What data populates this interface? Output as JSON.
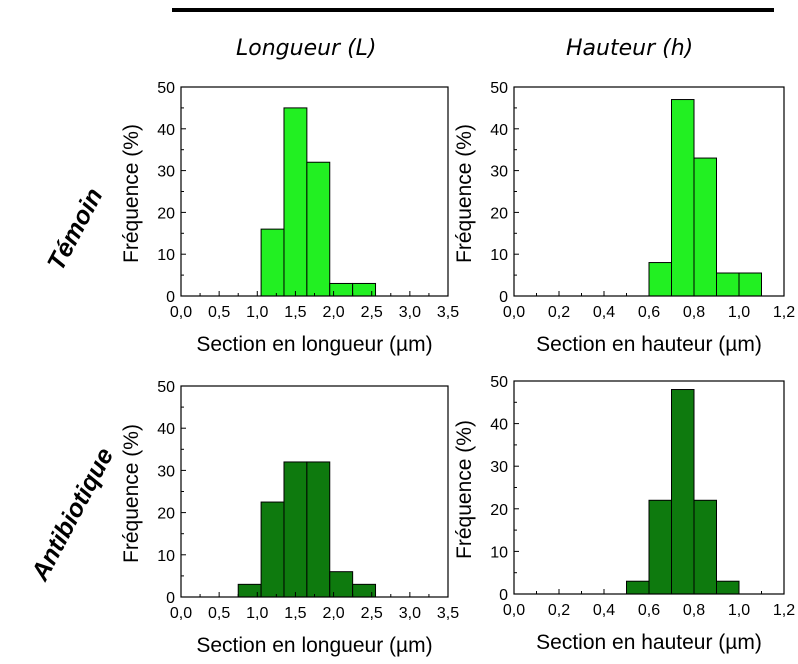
{
  "column_headers": [
    "Longueur (L)",
    "Hauteur (h)"
  ],
  "row_headers": [
    "Témoin",
    "Antibiotique"
  ],
  "colors": {
    "temoin_bar": "#22f022",
    "antibiotique_bar": "#0e7a0e",
    "bar_edge": "#000000"
  },
  "chart_data": [
    {
      "type": "bar",
      "row": "Témoin",
      "column": "Longueur (L)",
      "xlabel": "Section en longueur (µm)",
      "ylabel": "Fréquence (%)",
      "xlim": [
        0.0,
        3.5
      ],
      "ylim": [
        0,
        50
      ],
      "xticks": [
        "0,0",
        "0,5",
        "1,0",
        "1,5",
        "2,0",
        "2,5",
        "3,0",
        "3,5"
      ],
      "yticks": [
        "0",
        "10",
        "20",
        "30",
        "40",
        "50"
      ],
      "bin_width": 0.3,
      "bins": [
        1.05,
        1.35,
        1.65,
        1.95,
        2.25
      ],
      "values": [
        16,
        45,
        32,
        3,
        3
      ],
      "grid": false
    },
    {
      "type": "bar",
      "row": "Témoin",
      "column": "Hauteur (h)",
      "xlabel": "Section en hauteur (µm)",
      "ylabel": "Fréquence (%)",
      "xlim": [
        0.0,
        1.2
      ],
      "ylim": [
        0,
        50
      ],
      "xticks": [
        "0,0",
        "0,2",
        "0,4",
        "0,6",
        "0,8",
        "1,0",
        "1,2"
      ],
      "yticks": [
        "0",
        "10",
        "20",
        "30",
        "40",
        "50"
      ],
      "bin_width": 0.1,
      "bins": [
        0.6,
        0.7,
        0.8,
        0.9,
        1.0
      ],
      "values": [
        8,
        47,
        33,
        5.5,
        5.5
      ],
      "grid": false
    },
    {
      "type": "bar",
      "row": "Antibiotique",
      "column": "Longueur (L)",
      "xlabel": "Section en longueur (µm)",
      "ylabel": "Fréquence (%)",
      "xlim": [
        0.0,
        3.5
      ],
      "ylim": [
        0,
        50
      ],
      "xticks": [
        "0,0",
        "0,5",
        "1,0",
        "1,5",
        "2,0",
        "2,5",
        "3,0",
        "3,5"
      ],
      "yticks": [
        "0",
        "10",
        "20",
        "30",
        "40",
        "50"
      ],
      "bin_width": 0.3,
      "bins": [
        0.75,
        1.05,
        1.35,
        1.65,
        1.95,
        2.25
      ],
      "values": [
        3,
        22.5,
        32,
        32,
        6,
        3
      ],
      "grid": false
    },
    {
      "type": "bar",
      "row": "Antibiotique",
      "column": "Hauteur (h)",
      "xlabel": "Section en hauteur (µm)",
      "ylabel": "Fréquence (%)",
      "xlim": [
        0.0,
        1.2
      ],
      "ylim": [
        0,
        50
      ],
      "xticks": [
        "0,0",
        "0,2",
        "0,4",
        "0,6",
        "0,8",
        "1,0",
        "1,2"
      ],
      "yticks": [
        "0",
        "10",
        "20",
        "30",
        "40",
        "50"
      ],
      "bin_width": 0.1,
      "bins": [
        0.5,
        0.6,
        0.7,
        0.8,
        0.9
      ],
      "values": [
        3,
        22,
        48,
        22,
        3
      ],
      "grid": false
    }
  ]
}
